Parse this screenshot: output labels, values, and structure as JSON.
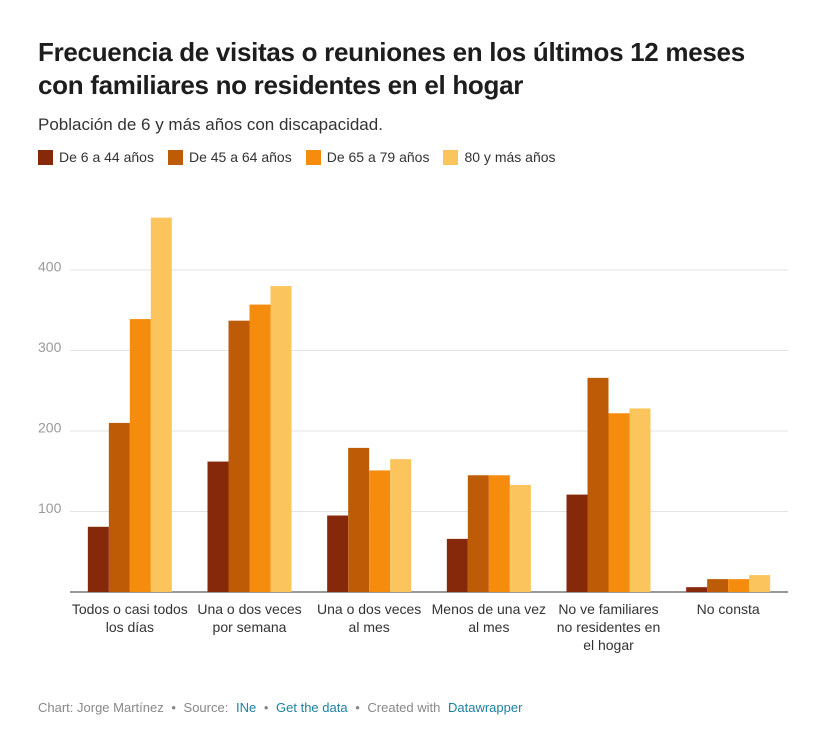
{
  "chart_data": {
    "type": "bar",
    "title": "Frecuencia de visitas o reuniones en los últimos 12 meses con familiares no residentes en el hogar",
    "subtitle": "Población de 6 y más años con discapacidad.",
    "categories": [
      "Todos o casi todos los días",
      "Una o dos veces por semana",
      "Una o dos veces al mes",
      "Menos de una vez al mes",
      "No ve familiares no residentes en el hogar",
      "No consta"
    ],
    "series": [
      {
        "name": "De 6 a 44 años",
        "color": "#86290a",
        "values": [
          81,
          162,
          95,
          66,
          121,
          6
        ]
      },
      {
        "name": "De 45 a 64 años",
        "color": "#bd5b06",
        "values": [
          210,
          337,
          179,
          145,
          266,
          16
        ]
      },
      {
        "name": "De 65 a 79 años",
        "color": "#f58c0d",
        "values": [
          339,
          357,
          151,
          145,
          222,
          16
        ]
      },
      {
        "name": "80 y más años",
        "color": "#fcc45c",
        "values": [
          465,
          380,
          165,
          133,
          228,
          21
        ]
      }
    ],
    "ylim": [
      0,
      470
    ],
    "yticks": [
      100,
      200,
      300,
      400
    ],
    "grid": true,
    "footer": {
      "credit": "Chart: Jorge Martínez",
      "separator": "•",
      "source_label": "Source:",
      "source": "INe",
      "get_data": "Get the data",
      "created": "Created with",
      "tool": "Datawrapper"
    }
  }
}
